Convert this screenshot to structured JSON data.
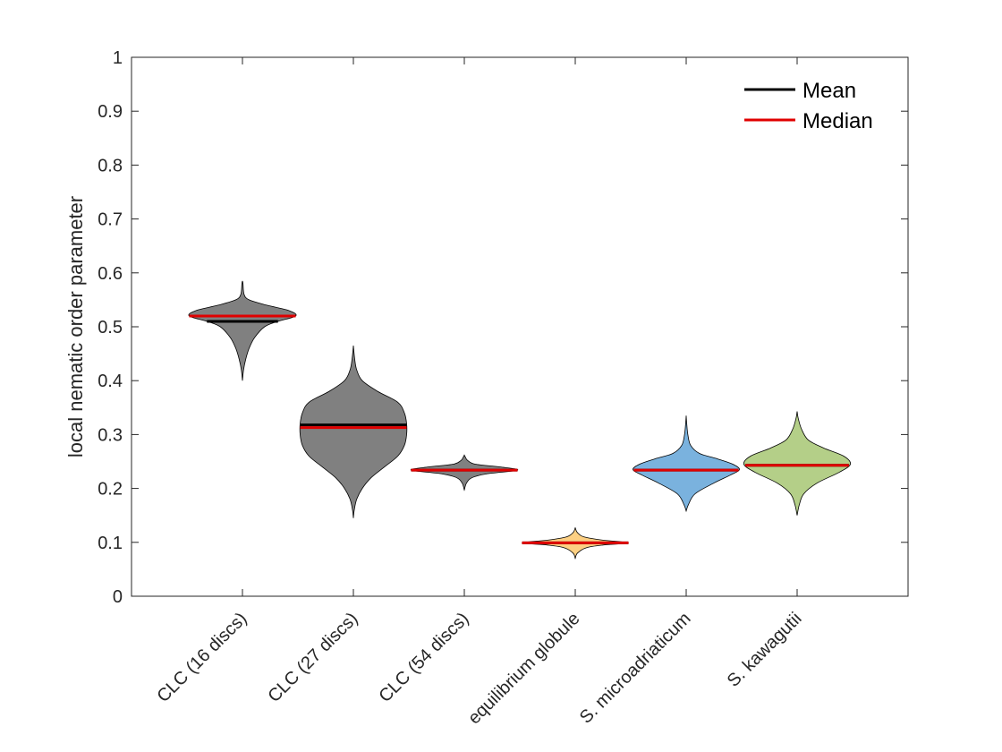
{
  "chart_data": {
    "type": "violin",
    "title": "",
    "xlabel": "",
    "ylabel": "local nematic order parameter",
    "ylim": [
      0,
      1
    ],
    "yticks": [
      0,
      0.1,
      0.2,
      0.3,
      0.4,
      0.5,
      0.6,
      0.7,
      0.8,
      0.9,
      1
    ],
    "ytick_labels": [
      "0",
      "0.1",
      "0.2",
      "0.3",
      "0.4",
      "0.5",
      "0.6",
      "0.7",
      "0.8",
      "0.9",
      "1"
    ],
    "grid": false,
    "legend": {
      "position": "top-right",
      "entries": [
        {
          "label": "Mean",
          "color": "#000000"
        },
        {
          "label": "Median",
          "color": "#e00000"
        }
      ]
    },
    "categories": [
      "CLC (16 discs)",
      "CLC (27 discs)",
      "CLC (54 discs)",
      "equilibrium globule",
      "S. microadriaticum",
      "S. kawagutii"
    ],
    "series": [
      {
        "category": "CLC (16 discs)",
        "color": "#808080",
        "mean": 0.51,
        "median": 0.52,
        "density": [
          [
            0.4,
            0.0
          ],
          [
            0.42,
            0.01
          ],
          [
            0.44,
            0.03
          ],
          [
            0.46,
            0.06
          ],
          [
            0.48,
            0.11
          ],
          [
            0.5,
            0.2
          ],
          [
            0.51,
            0.32
          ],
          [
            0.52,
            0.48
          ],
          [
            0.53,
            0.42
          ],
          [
            0.54,
            0.22
          ],
          [
            0.55,
            0.06
          ],
          [
            0.56,
            0.015
          ],
          [
            0.58,
            0.005
          ],
          [
            0.585,
            0.0
          ]
        ]
      },
      {
        "category": "CLC (27 discs)",
        "color": "#808080",
        "mean": 0.318,
        "median": 0.313,
        "density": [
          [
            0.145,
            0.0
          ],
          [
            0.16,
            0.008
          ],
          [
            0.18,
            0.03
          ],
          [
            0.2,
            0.08
          ],
          [
            0.22,
            0.16
          ],
          [
            0.24,
            0.28
          ],
          [
            0.26,
            0.4
          ],
          [
            0.28,
            0.46
          ],
          [
            0.3,
            0.48
          ],
          [
            0.32,
            0.48
          ],
          [
            0.34,
            0.46
          ],
          [
            0.36,
            0.4
          ],
          [
            0.38,
            0.22
          ],
          [
            0.4,
            0.08
          ],
          [
            0.42,
            0.03
          ],
          [
            0.44,
            0.012
          ],
          [
            0.465,
            0.0
          ]
        ]
      },
      {
        "category": "CLC (54 discs)",
        "color": "#808080",
        "mean": 0.234,
        "median": 0.234,
        "density": [
          [
            0.197,
            0.0
          ],
          [
            0.21,
            0.02
          ],
          [
            0.22,
            0.07
          ],
          [
            0.227,
            0.2
          ],
          [
            0.234,
            0.48
          ],
          [
            0.24,
            0.32
          ],
          [
            0.245,
            0.1
          ],
          [
            0.252,
            0.03
          ],
          [
            0.258,
            0.01
          ],
          [
            0.262,
            0.0
          ]
        ]
      },
      {
        "category": "equilibrium globule",
        "color": "#fdd083",
        "mean": 0.099,
        "median": 0.099,
        "density": [
          [
            0.07,
            0.0
          ],
          [
            0.08,
            0.02
          ],
          [
            0.09,
            0.1
          ],
          [
            0.095,
            0.25
          ],
          [
            0.099,
            0.48
          ],
          [
            0.104,
            0.25
          ],
          [
            0.11,
            0.08
          ],
          [
            0.118,
            0.02
          ],
          [
            0.127,
            0.0
          ]
        ]
      },
      {
        "category": "S. microadriaticum",
        "color": "#7ab2de",
        "mean": 0.234,
        "median": 0.234,
        "density": [
          [
            0.158,
            0.0
          ],
          [
            0.17,
            0.02
          ],
          [
            0.19,
            0.08
          ],
          [
            0.21,
            0.25
          ],
          [
            0.225,
            0.4
          ],
          [
            0.235,
            0.48
          ],
          [
            0.245,
            0.42
          ],
          [
            0.255,
            0.28
          ],
          [
            0.265,
            0.12
          ],
          [
            0.28,
            0.04
          ],
          [
            0.3,
            0.015
          ],
          [
            0.32,
            0.005
          ],
          [
            0.335,
            0.0
          ]
        ]
      },
      {
        "category": "S. kawagutii",
        "color": "#b4cf88",
        "mean": 0.243,
        "median": 0.243,
        "density": [
          [
            0.15,
            0.0
          ],
          [
            0.17,
            0.02
          ],
          [
            0.19,
            0.06
          ],
          [
            0.21,
            0.18
          ],
          [
            0.23,
            0.38
          ],
          [
            0.245,
            0.48
          ],
          [
            0.26,
            0.42
          ],
          [
            0.275,
            0.24
          ],
          [
            0.29,
            0.1
          ],
          [
            0.31,
            0.04
          ],
          [
            0.33,
            0.01
          ],
          [
            0.343,
            0.0
          ]
        ]
      }
    ]
  }
}
